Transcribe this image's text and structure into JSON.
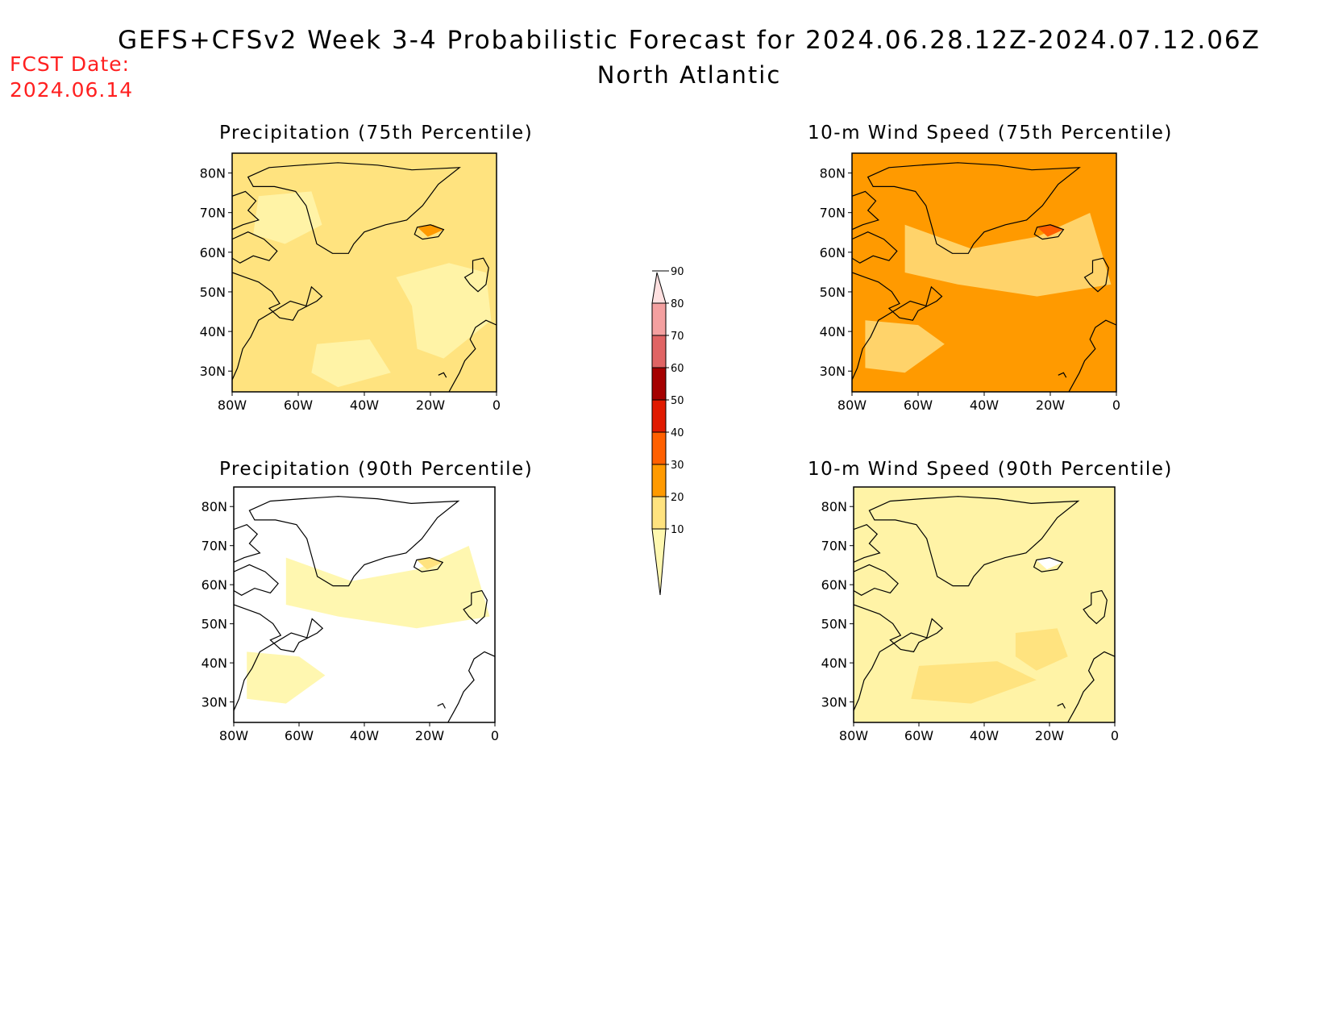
{
  "header": {
    "title": "GEFS+CFSv2 Week 3-4 Probabilistic Forecast for 2024.06.28.12Z-2024.07.12.06Z",
    "region": "North Atlantic",
    "fcst_label": "FCST Date:",
    "fcst_date": "2024.06.14"
  },
  "panels": [
    {
      "title": "Precipitation (75th Percentile)",
      "base_color": "#ffe37f",
      "patch_color": "#fff3a6",
      "hot_color": "#ff9a00"
    },
    {
      "title": "10-m Wind Speed (75th Percentile)",
      "base_color": "#ff9a00",
      "patch_color": "#ffd36a",
      "hot_color": "#ff6000"
    },
    {
      "title": "Precipitation (90th Percentile)",
      "base_color": "#ffffff",
      "patch_color": "#fff7b0",
      "hot_color": "#ffe37f"
    },
    {
      "title": "10-m Wind Speed (90th Percentile)",
      "base_color": "#fff3a6",
      "patch_color": "#ffe37f",
      "hot_color": "#ffffff"
    }
  ],
  "axes": {
    "lat_ticks": [
      "80N",
      "70N",
      "60N",
      "50N",
      "40N",
      "30N"
    ],
    "lon_ticks": [
      "80W",
      "60W",
      "40W",
      "20W",
      "0"
    ]
  },
  "colorbar": {
    "levels": [
      "10",
      "20",
      "30",
      "40",
      "50",
      "60",
      "70",
      "80",
      "90"
    ],
    "colors": [
      "#fff8b0",
      "#ffe37f",
      "#ff9a00",
      "#ff6000",
      "#e01a00",
      "#a50000",
      "#e06464",
      "#f4a0a0",
      "#ffe0e0"
    ]
  }
}
